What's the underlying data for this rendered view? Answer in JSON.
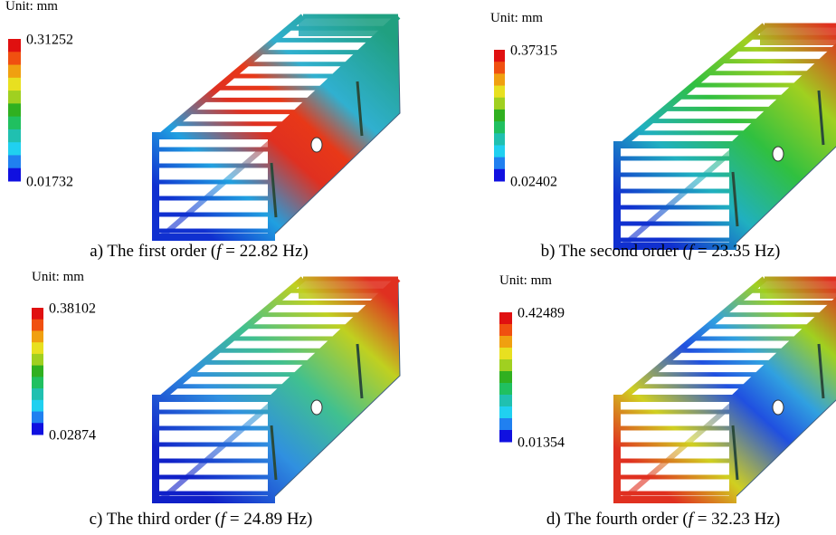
{
  "panels": [
    {
      "unit": "Unit: mm",
      "max": "0.31252",
      "min": "0.01732",
      "caption": {
        "prefix": "a) The first order (",
        "variable": "f",
        "suffix": " = 22.82 Hz)"
      }
    },
    {
      "unit": "Unit: mm",
      "max": "0.37315",
      "min": "0.02402",
      "caption": {
        "prefix": "b) The second order (",
        "variable": "f",
        "suffix": " = 23.35 Hz)"
      }
    },
    {
      "unit": "Unit: mm",
      "max": "0.38102",
      "min": "0.02874",
      "caption": {
        "prefix": "c) The third order (",
        "variable": "f",
        "suffix": " = 24.89 Hz)"
      }
    },
    {
      "unit": "Unit: mm",
      "max": "0.42489",
      "min": "0.01354",
      "caption": {
        "prefix": "d) The fourth order (",
        "variable": "f",
        "suffix": " = 32.23 Hz)"
      }
    }
  ]
}
